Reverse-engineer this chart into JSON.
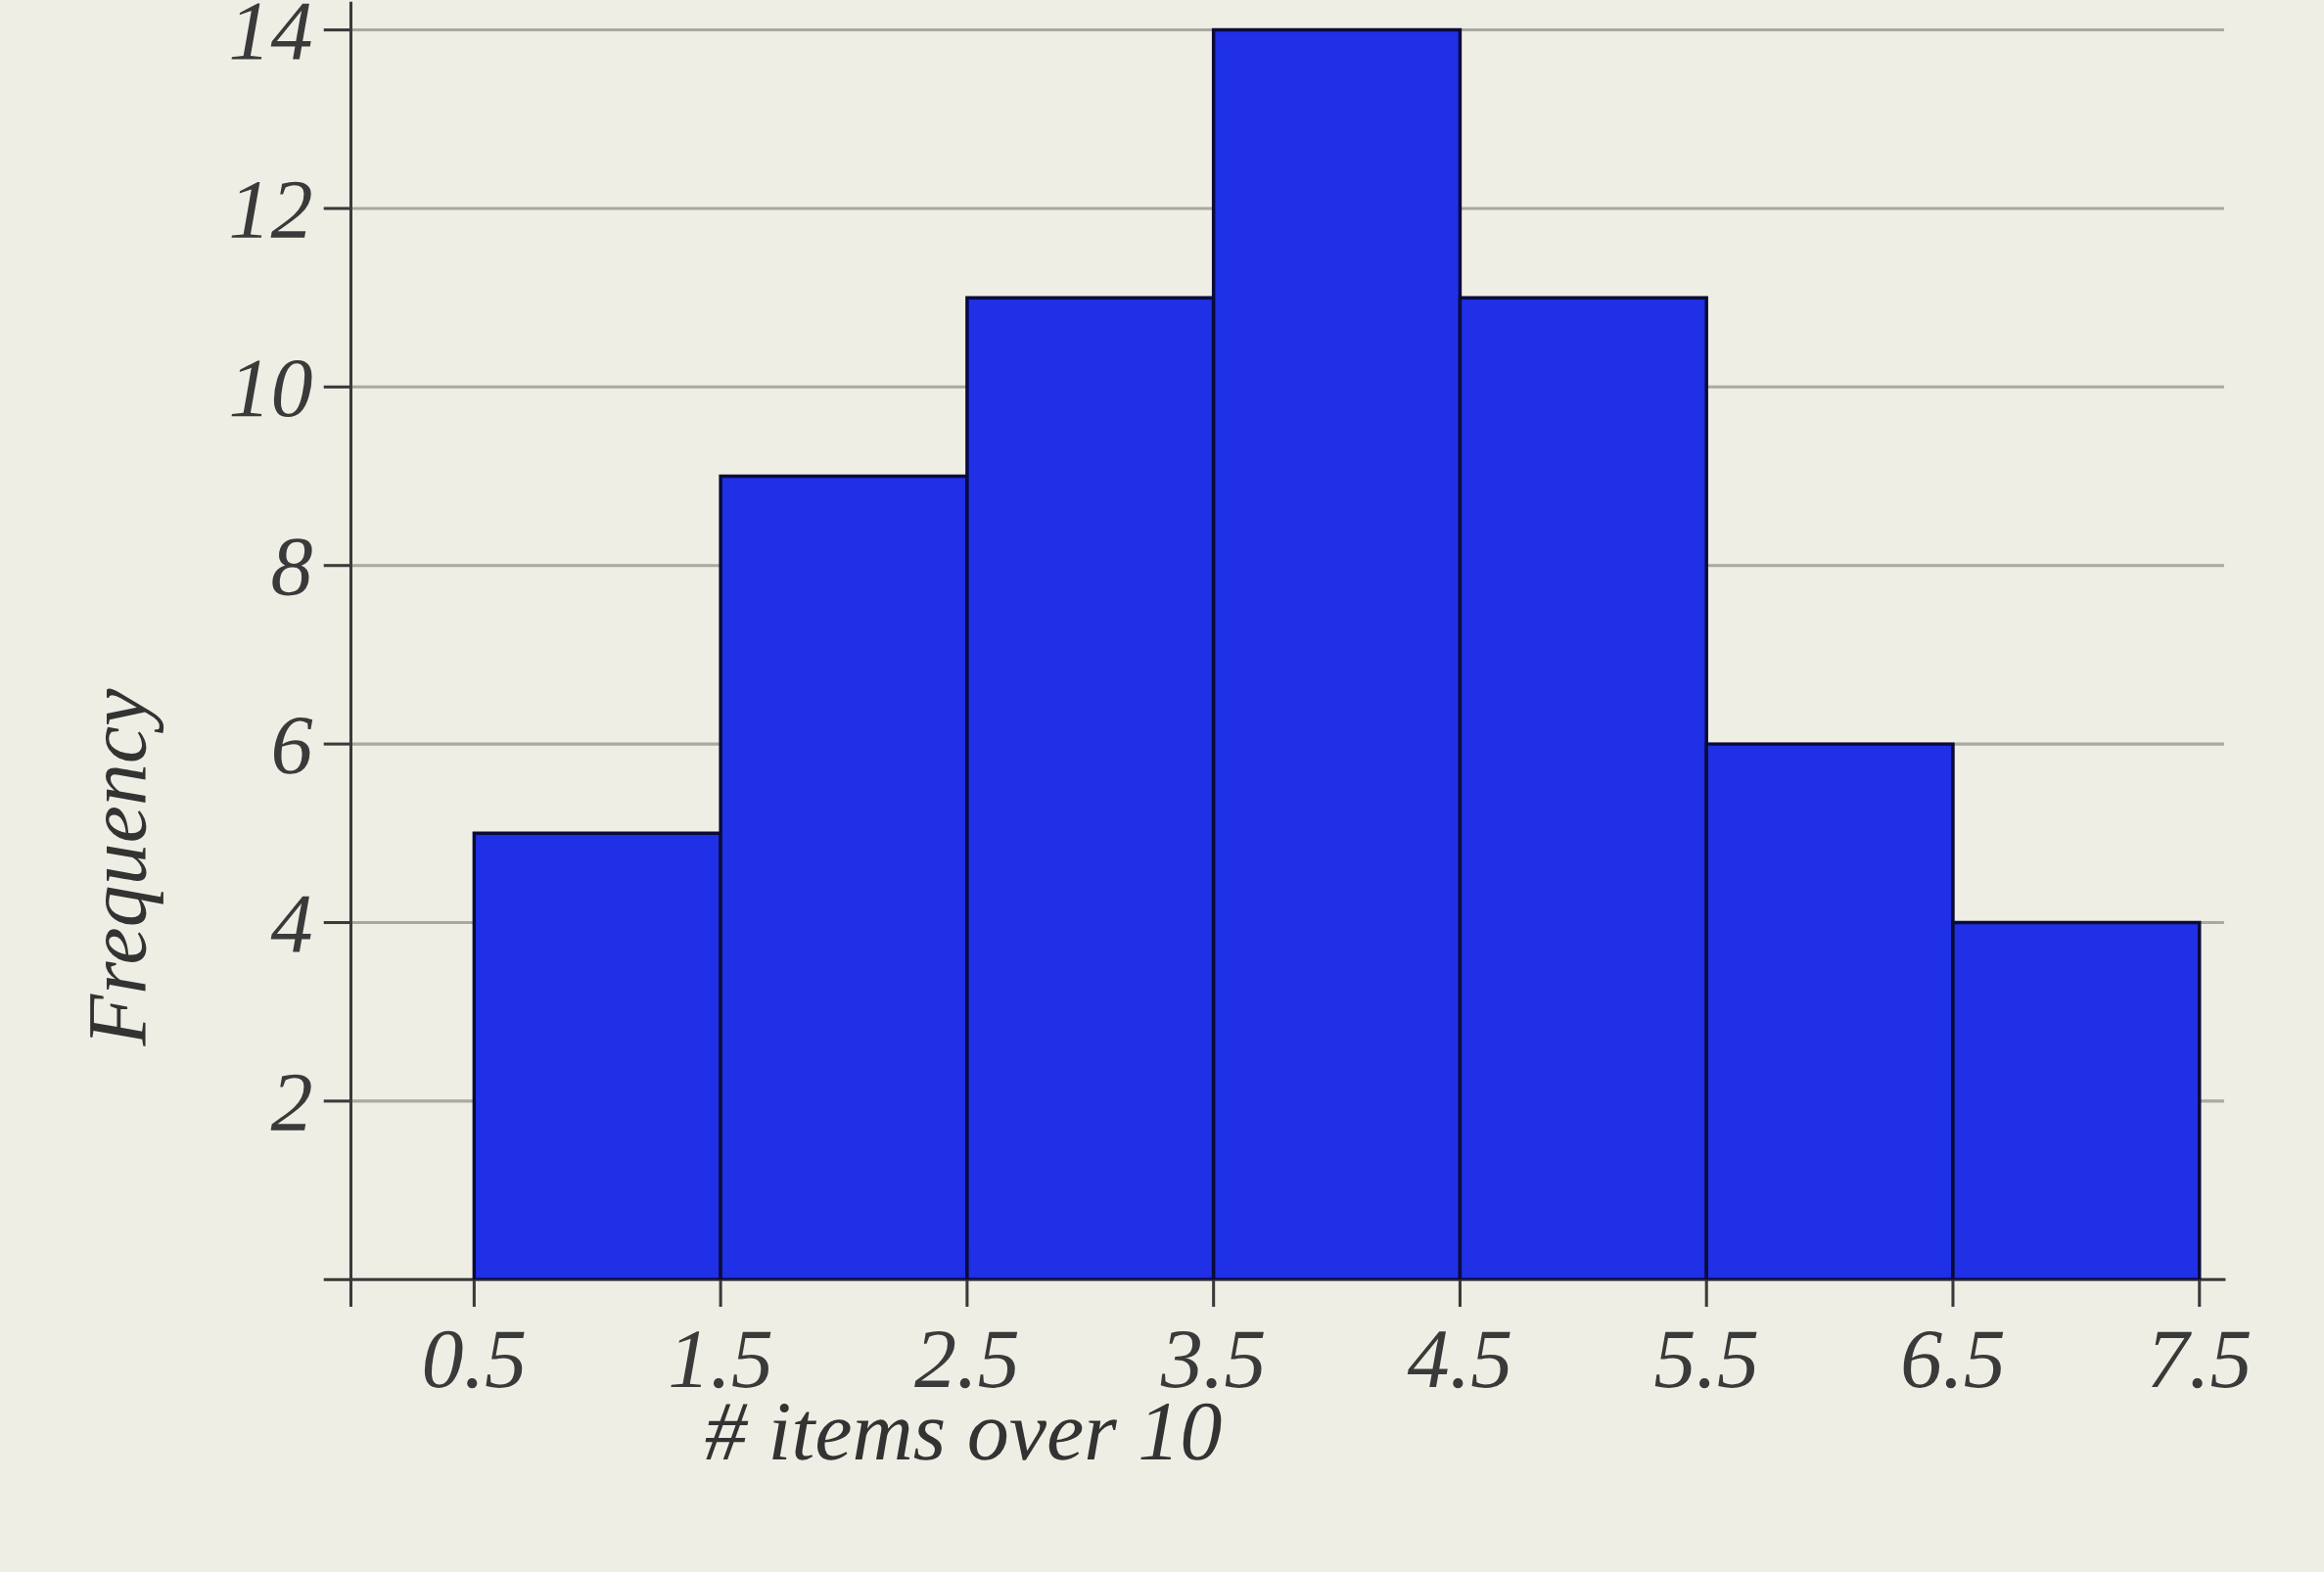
{
  "chart_data": {
    "type": "histogram",
    "xlabel": "# items over 10",
    "ylabel": "Frequency",
    "bins": [
      0.5,
      1.5,
      2.5,
      3.5,
      4.5,
      5.5,
      6.5,
      7.5
    ],
    "values": [
      5,
      9,
      11,
      14,
      11,
      6,
      4
    ],
    "color": "#1f30e6",
    "xlim": [
      0,
      7.6
    ],
    "ylim": [
      0,
      14.3
    ],
    "xticks": [
      {
        "value": 0,
        "label": null
      },
      0.5,
      1.5,
      2.5,
      3.5,
      4.5,
      5.5,
      6.5,
      7.5
    ],
    "yticks": [
      {
        "value": 0,
        "label": null
      },
      2,
      4,
      6,
      8,
      10,
      12,
      14
    ],
    "grid": "y"
  }
}
